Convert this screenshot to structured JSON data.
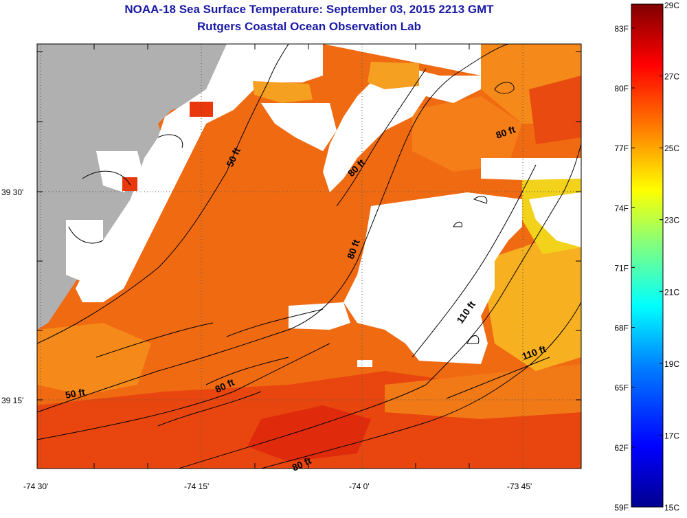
{
  "header": {
    "title": "NOAA-18 Sea Surface Temperature:  September 03, 2015 2213 GMT",
    "subtitle": "Rutgers Coastal Ocean Observation Lab"
  },
  "map": {
    "lat_labels": [
      "39 30'",
      "39 15'"
    ],
    "lon_labels": [
      "-74 30'",
      "-74 15'",
      "-74 0'",
      "-73 45'"
    ],
    "contour_labels": [
      "50 ft",
      "80 ft",
      "80 ft",
      "80 ft",
      "110 ft",
      "110 ft",
      "50 ft",
      "80 ft",
      "80 ft"
    ],
    "colors": {
      "land": "#b0b0b0",
      "cloud": "#ffffff",
      "ocean_warm": "#f06a10"
    }
  },
  "colorbar": {
    "celsius_labels": [
      "29C",
      "27C",
      "25C",
      "23C",
      "21C",
      "19C",
      "17C",
      "15C"
    ],
    "fahrenheit_labels": [
      "83F",
      "80F",
      "77F",
      "74F",
      "71F",
      "68F",
      "65F",
      "62F",
      "59F"
    ],
    "range_c": [
      15,
      29
    ],
    "colors": [
      "#00008f",
      "#0000ff",
      "#0080ff",
      "#00ffff",
      "#80ff80",
      "#ffff00",
      "#ff8000",
      "#ff0000",
      "#800000"
    ]
  }
}
